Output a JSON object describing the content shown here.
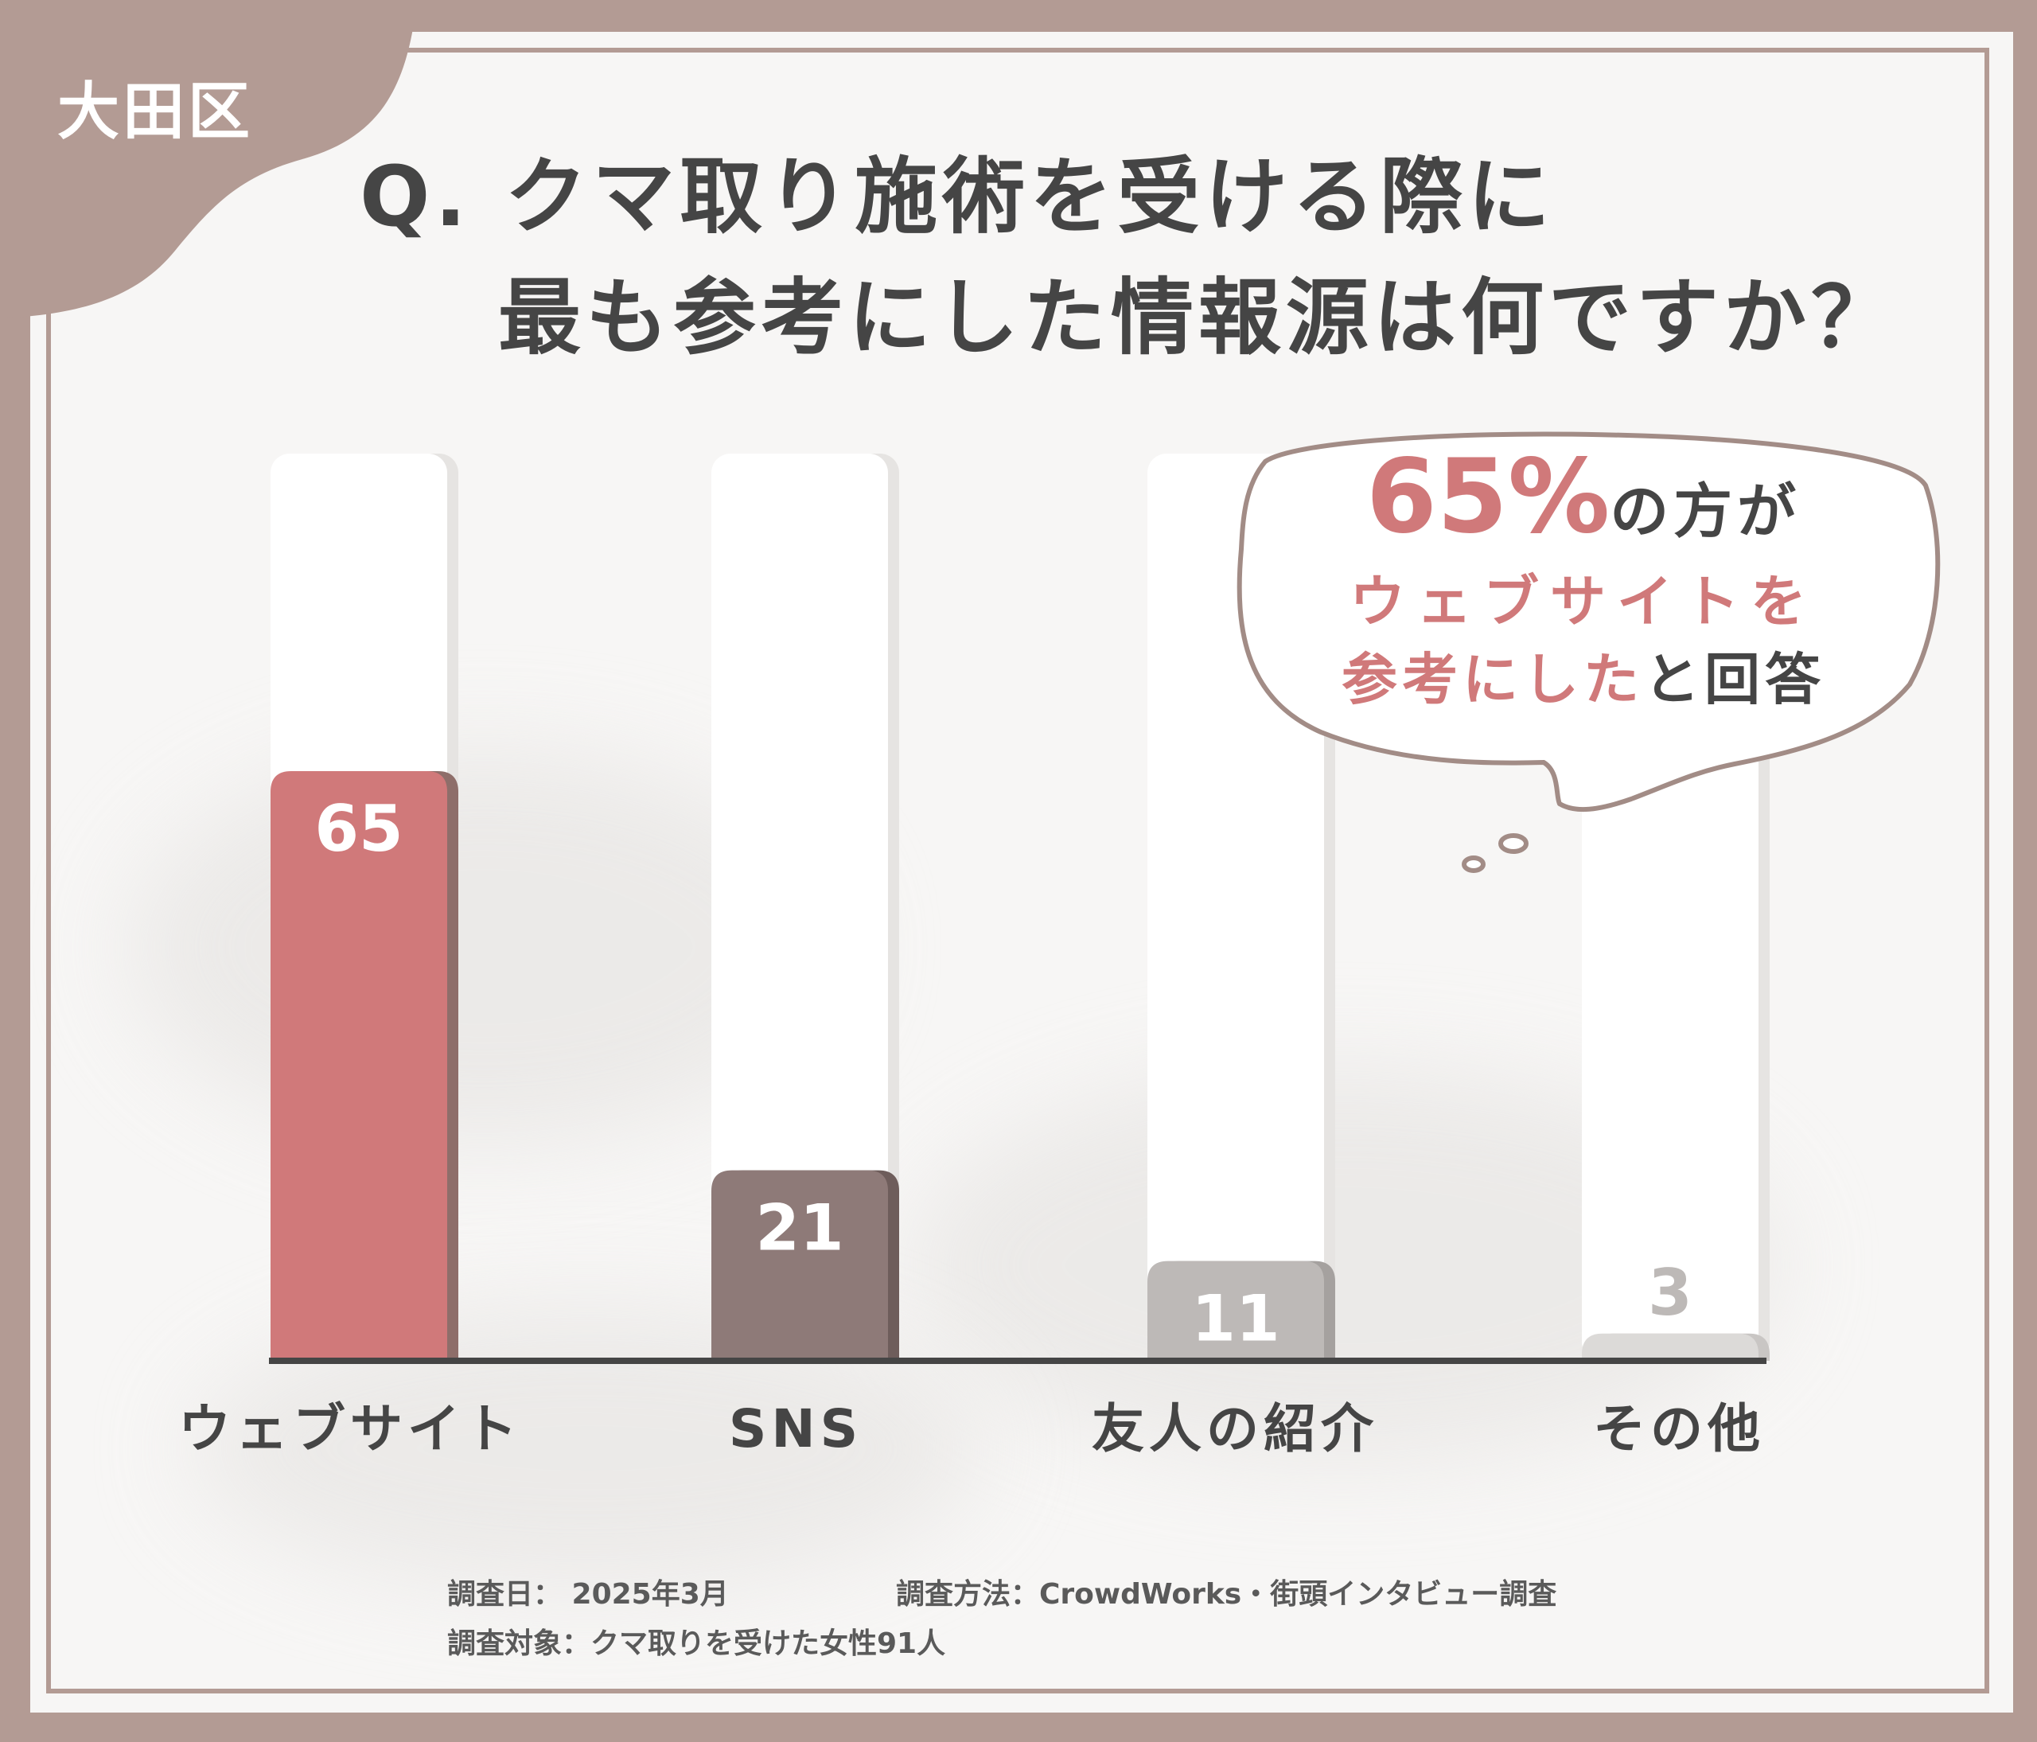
{
  "ward": "大田区",
  "title": {
    "line1": "Q. クマ取り施術を受ける際に",
    "line2": "最も参考にした情報源は何ですか？"
  },
  "callout": {
    "percent": "65%",
    "text1": "の方が",
    "text2": "ウェブサイトを",
    "text3_pink": "参考にした",
    "text3_dark": "と回答"
  },
  "notes": {
    "date": "調査日： 2025年3月",
    "method": "調査方法：CrowdWorks・街頭インタビュー調査",
    "target": "調査対象：クマ取りを受けた女性91人"
  },
  "colors": {
    "background": "#b39b94",
    "accent": "#d0797a",
    "bar_website": "#d0797a",
    "bar_sns": "#8e7a78",
    "bar_friend": "#bdb9b7",
    "bar_other": "#dcdad8",
    "text": "#454545"
  },
  "chart_data": {
    "type": "bar",
    "categories": [
      "ウェブサイト",
      "SNS",
      "友人の紹介",
      "その他"
    ],
    "values": [
      65,
      21,
      11,
      3
    ],
    "ylim": [
      0,
      100
    ],
    "grid": false,
    "data_labels": [
      "65",
      "21",
      "11",
      "3"
    ]
  }
}
